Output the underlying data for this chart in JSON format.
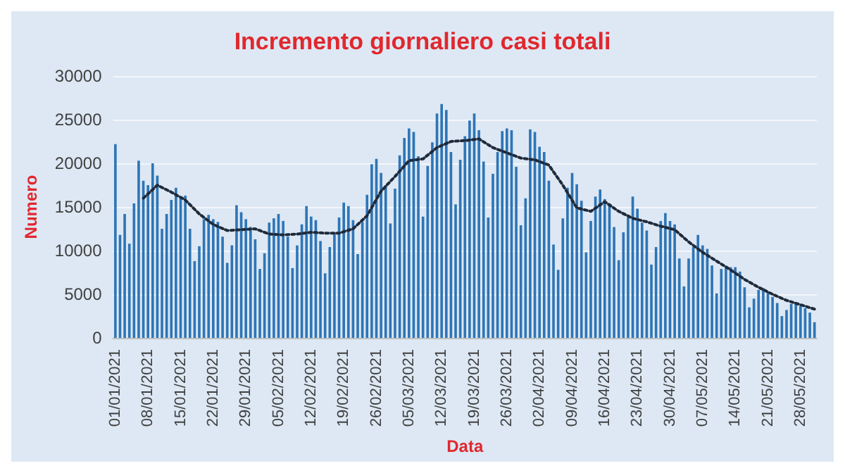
{
  "chart_data": {
    "type": "bar",
    "title": "Incremento giornaliero casi totali",
    "xlabel": "Data",
    "ylabel": "Numero",
    "categories": [
      "01/01/2021",
      null,
      null,
      null,
      null,
      null,
      null,
      "08/01/2021",
      null,
      null,
      null,
      null,
      null,
      null,
      "15/01/2021",
      null,
      null,
      null,
      null,
      null,
      null,
      "22/01/2021",
      null,
      null,
      null,
      null,
      null,
      null,
      "29/01/2021",
      null,
      null,
      null,
      null,
      null,
      null,
      "05/02/2021",
      null,
      null,
      null,
      null,
      null,
      null,
      "12/02/2021",
      null,
      null,
      null,
      null,
      null,
      null,
      "19/02/2021",
      null,
      null,
      null,
      null,
      null,
      null,
      "26/02/2021",
      null,
      null,
      null,
      null,
      null,
      null,
      "05/03/2021",
      null,
      null,
      null,
      null,
      null,
      null,
      "12/03/2021",
      null,
      null,
      null,
      null,
      null,
      null,
      "19/03/2021",
      null,
      null,
      null,
      null,
      null,
      null,
      "26/03/2021",
      null,
      null,
      null,
      null,
      null,
      null,
      "02/04/2021",
      null,
      null,
      null,
      null,
      null,
      null,
      "09/04/2021",
      null,
      null,
      null,
      null,
      null,
      null,
      "16/04/2021",
      null,
      null,
      null,
      null,
      null,
      null,
      "23/04/2021",
      null,
      null,
      null,
      null,
      null,
      null,
      "30/04/2021",
      null,
      null,
      null,
      null,
      null,
      null,
      "07/05/2021",
      null,
      null,
      null,
      null,
      null,
      null,
      "14/05/2021",
      null,
      null,
      null,
      null,
      null,
      null,
      "21/05/2021",
      null,
      null,
      null,
      null,
      null,
      null,
      "28/05/2021",
      null,
      null,
      null
    ],
    "series": [
      {
        "color": "#2e75b6",
        "values": [
          22200,
          11800,
          14200,
          10800,
          15400,
          20300,
          18000,
          17500,
          20000,
          18600,
          12500,
          14200,
          15800,
          17200,
          16100,
          16300,
          12500,
          8800,
          10500,
          13600,
          14100,
          13600,
          13300,
          11600,
          8600,
          10600,
          15200,
          14400,
          13600,
          12700,
          11300,
          7900,
          9700,
          13200,
          13700,
          14200,
          13400,
          11600,
          8000,
          10600,
          13000,
          15100,
          13900,
          13500,
          11100,
          7400,
          10400,
          12100,
          13800,
          15500,
          15100,
          13500,
          9600,
          13300,
          16400,
          19900,
          20500,
          18900,
          17500,
          13100,
          17100,
          20900,
          22900,
          24000,
          23600,
          20800,
          13900,
          19700,
          22400,
          25700,
          26800,
          26100,
          21300,
          15300,
          20400,
          23100,
          24900,
          25700,
          23800,
          20200,
          13800,
          18800,
          21300,
          23700,
          24000,
          23800,
          19600,
          12900,
          16000,
          23900,
          23600,
          21900,
          21300,
          18000,
          10700,
          7800,
          13700,
          17200,
          18900,
          17600,
          15700,
          9800,
          13400,
          16200,
          17000,
          15900,
          15400,
          12700,
          8900,
          12100,
          13800,
          16200,
          14800,
          13200,
          12300,
          8400,
          10400,
          13400,
          14300,
          13400,
          13000,
          9100,
          5900,
          9100,
          10400,
          11800,
          10600,
          10200,
          8300,
          5100,
          7900,
          8100,
          8100,
          8100,
          7600,
          5800,
          3500,
          4500,
          5500,
          5700,
          5200,
          4700,
          4000,
          2500,
          3200,
          3900,
          4100,
          3700,
          3400,
          2900,
          1800
        ]
      },
      {
        "type": "line",
        "color": "#1f2a3a",
        "line_style": "dotted",
        "marker": "none",
        "values": [
          null,
          null,
          null,
          null,
          null,
          null,
          16000,
          null,
          null,
          17500,
          null,
          null,
          16700,
          null,
          null,
          15800,
          null,
          null,
          14200,
          null,
          null,
          13000,
          null,
          null,
          12300,
          null,
          null,
          12400,
          null,
          null,
          12500,
          null,
          null,
          11900,
          null,
          null,
          11800,
          null,
          null,
          11900,
          null,
          null,
          12100,
          null,
          null,
          12000,
          null,
          null,
          12000,
          null,
          null,
          12500,
          null,
          null,
          14000,
          null,
          null,
          16800,
          null,
          null,
          18500,
          null,
          null,
          20300,
          null,
          null,
          20500,
          null,
          null,
          21800,
          null,
          null,
          22500,
          null,
          null,
          22600,
          null,
          null,
          22800,
          null,
          null,
          21800,
          null,
          null,
          21200,
          null,
          null,
          20600,
          null,
          null,
          20400,
          null,
          null,
          19800,
          null,
          null,
          17500,
          null,
          null,
          14900,
          null,
          null,
          14500,
          null,
          null,
          15600,
          null,
          null,
          14500,
          null,
          null,
          13700,
          null,
          null,
          13300,
          null,
          null,
          12800,
          null,
          null,
          12400,
          null,
          null,
          11000,
          null,
          null,
          9800,
          null,
          null,
          8800,
          null,
          null,
          7800,
          null,
          null,
          6700,
          null,
          null,
          5800,
          null,
          null,
          5000,
          null,
          null,
          4300,
          null,
          null,
          3800,
          null,
          null,
          3300
        ]
      }
    ],
    "ylim": [
      0,
      30000
    ],
    "yticks": [
      0,
      5000,
      10000,
      15000,
      20000,
      25000,
      30000
    ],
    "grid": "y"
  }
}
